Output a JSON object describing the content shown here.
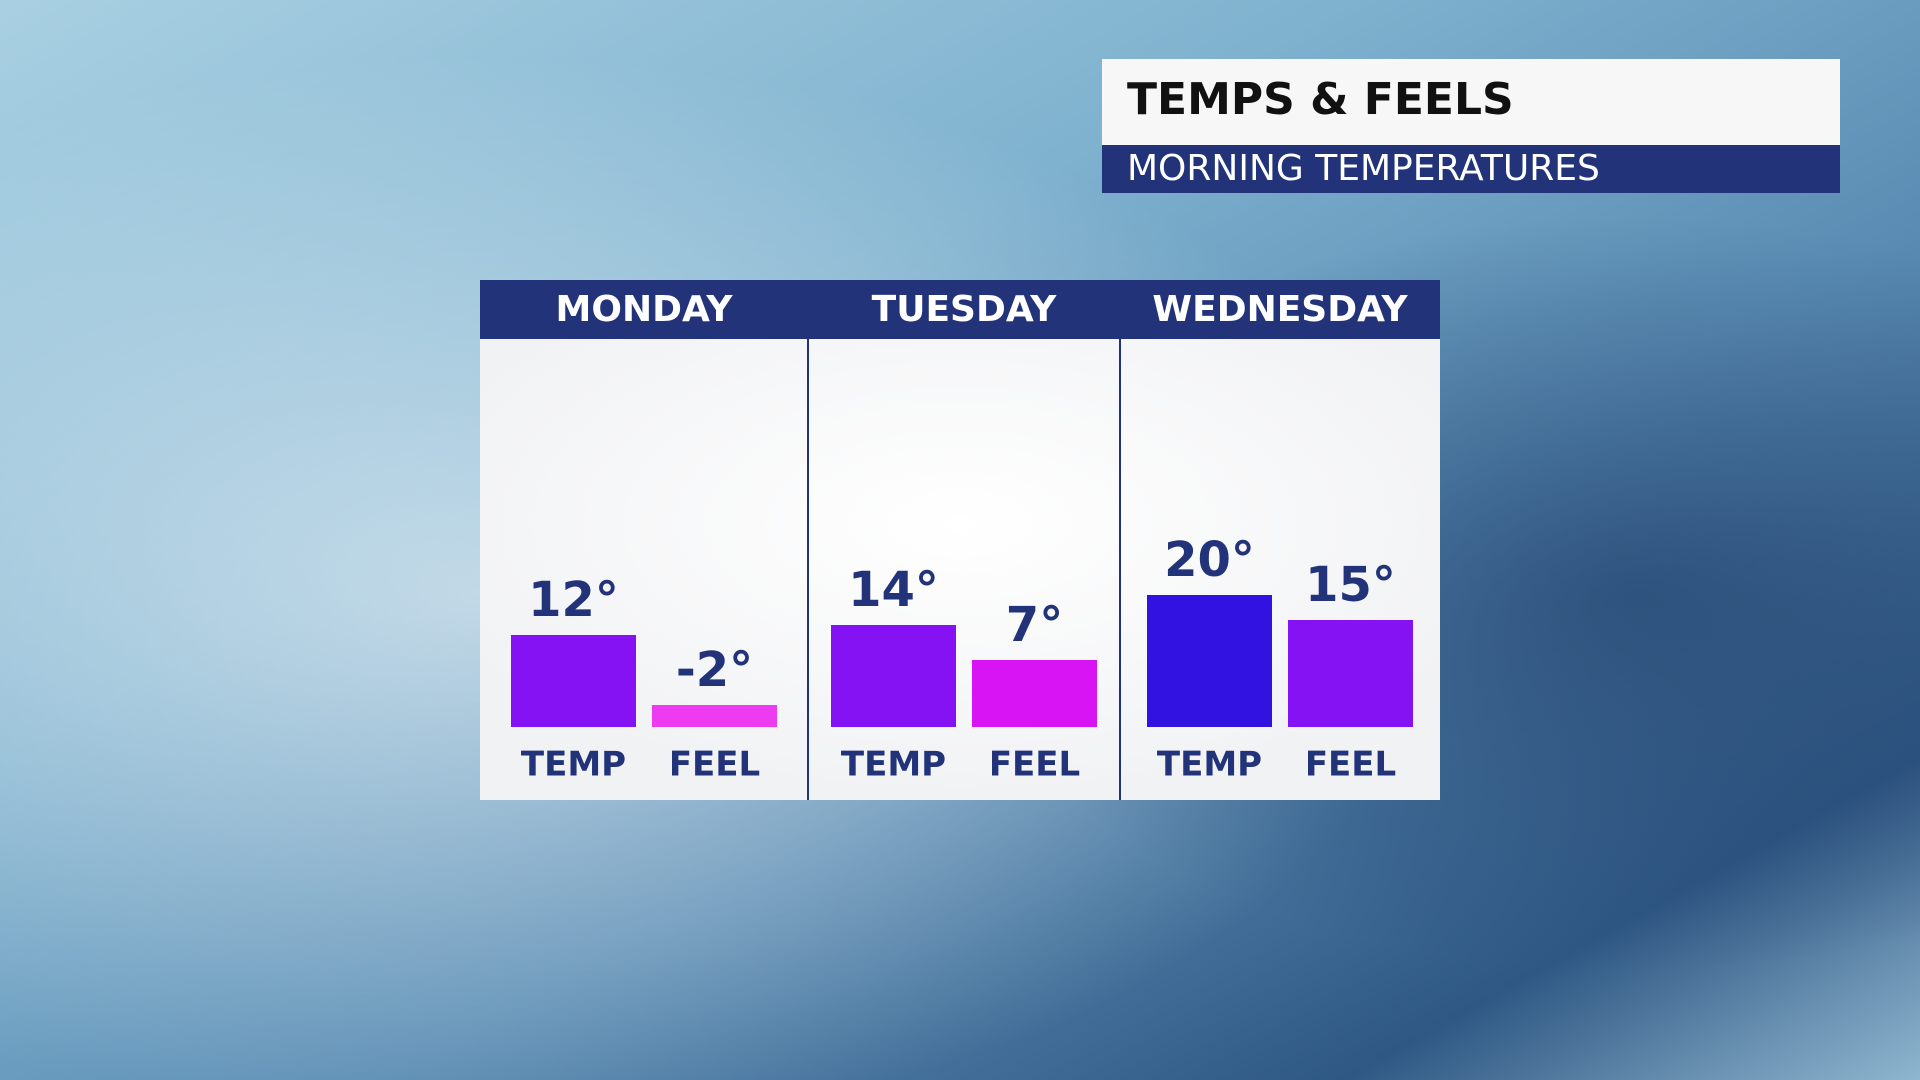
{
  "chart_data": {
    "type": "bar",
    "title": "TEMPS & FEELS",
    "subtitle": "MORNING TEMPERATURES",
    "categories": [
      "MONDAY",
      "TUESDAY",
      "WEDNESDAY"
    ],
    "series": [
      {
        "name": "TEMP",
        "colors": [
          "#8412f2",
          "#8412f2",
          "#3212e0"
        ],
        "values": [
          12,
          14,
          20
        ],
        "value_labels": [
          "12°",
          "14°",
          "20°"
        ]
      },
      {
        "name": "FEEL",
        "colors": [
          "#ee3af0",
          "#d814f4",
          "#8412f2"
        ],
        "values": [
          -2,
          7,
          15
        ],
        "value_labels": [
          "-2°",
          "7°",
          "15°"
        ]
      }
    ]
  }
}
